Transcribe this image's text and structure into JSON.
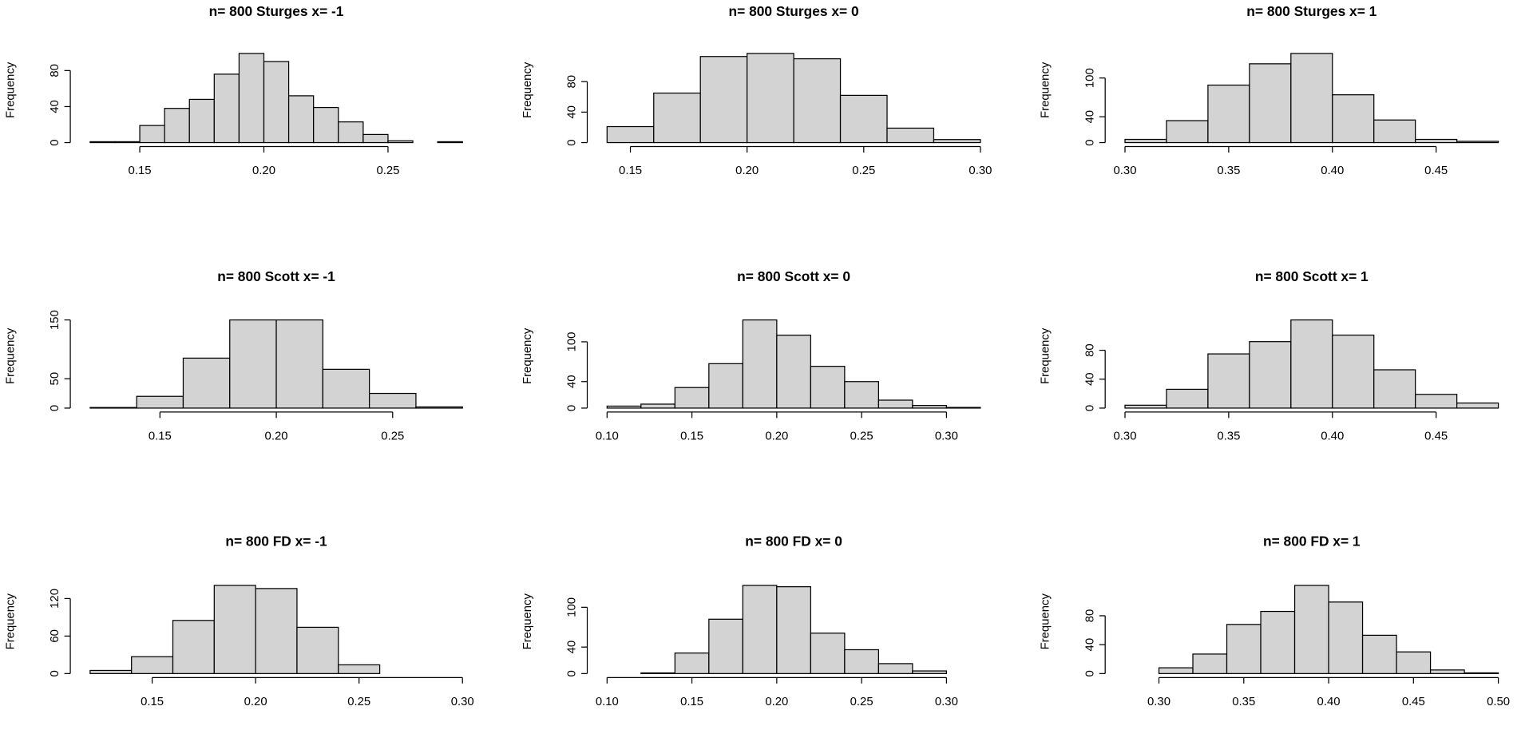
{
  "chart_data": [
    {
      "type": "histogram",
      "title": "n= 800 Sturges x= -1",
      "y_label": "Frequency",
      "bins": [
        0.13,
        0.14,
        0.15,
        0.16,
        0.17,
        0.18,
        0.19,
        0.2,
        0.21,
        0.22,
        0.23,
        0.24,
        0.25,
        0.26,
        0.27,
        0.28
      ],
      "values": [
        1,
        1,
        19,
        38,
        48,
        76,
        99,
        90,
        52,
        39,
        23,
        9,
        2,
        0,
        1
      ],
      "xlim": [
        0.13,
        0.28
      ],
      "xticks": [
        {
          "value": 0.15,
          "label": "0.15"
        },
        {
          "value": 0.2,
          "label": "0.20"
        },
        {
          "value": 0.25,
          "label": "0.25"
        }
      ],
      "ylim": [
        0,
        99
      ],
      "yticks": [
        0,
        40,
        80
      ],
      "color": "#d3d3d3"
    },
    {
      "type": "histogram",
      "title": "n= 800 Sturges x= 0",
      "y_label": "Frequency",
      "bins": [
        0.14,
        0.16,
        0.18,
        0.2,
        0.22,
        0.24,
        0.26,
        0.28,
        0.3
      ],
      "values": [
        21,
        65,
        113,
        117,
        110,
        62,
        19,
        4
      ],
      "xlim": [
        0.14,
        0.3
      ],
      "xticks": [
        {
          "value": 0.15,
          "label": "0.15"
        },
        {
          "value": 0.2,
          "label": "0.20"
        },
        {
          "value": 0.25,
          "label": "0.25"
        },
        {
          "value": 0.3,
          "label": "0.30"
        }
      ],
      "ylim": [
        0,
        117
      ],
      "yticks": [
        0,
        40,
        80
      ],
      "color": "#d3d3d3"
    },
    {
      "type": "histogram",
      "title": "n= 800 Sturges x= 1",
      "y_label": "Frequency",
      "bins": [
        0.3,
        0.32,
        0.34,
        0.36,
        0.38,
        0.4,
        0.42,
        0.44,
        0.46,
        0.48
      ],
      "values": [
        5,
        34,
        89,
        122,
        138,
        74,
        35,
        5,
        2
      ],
      "xlim": [
        0.3,
        0.48
      ],
      "xticks": [
        {
          "value": 0.3,
          "label": "0.30"
        },
        {
          "value": 0.35,
          "label": "0.35"
        },
        {
          "value": 0.4,
          "label": "0.40"
        },
        {
          "value": 0.45,
          "label": "0.45"
        }
      ],
      "ylim": [
        0,
        138
      ],
      "yticks": [
        0,
        40,
        100
      ],
      "color": "#d3d3d3"
    },
    {
      "type": "histogram",
      "title": "n= 800 Scott x= -1",
      "y_label": "Frequency",
      "bins": [
        0.12,
        0.14,
        0.16,
        0.18,
        0.2,
        0.22,
        0.24,
        0.26,
        0.28
      ],
      "values": [
        1,
        20,
        85,
        150,
        150,
        66,
        25,
        2
      ],
      "xlim": [
        0.12,
        0.28
      ],
      "xticks": [
        {
          "value": 0.15,
          "label": "0.15"
        },
        {
          "value": 0.2,
          "label": "0.20"
        },
        {
          "value": 0.25,
          "label": "0.25"
        }
      ],
      "ylim": [
        0,
        150
      ],
      "yticks": [
        0,
        50,
        150
      ],
      "color": "#d3d3d3"
    },
    {
      "type": "histogram",
      "title": "n= 800 Scott x= 0",
      "y_label": "Frequency",
      "bins": [
        0.1,
        0.12,
        0.14,
        0.16,
        0.18,
        0.2,
        0.22,
        0.24,
        0.26,
        0.28,
        0.3,
        0.32
      ],
      "values": [
        3,
        6,
        31,
        67,
        133,
        110,
        63,
        40,
        12,
        4,
        1
      ],
      "xlim": [
        0.1,
        0.32
      ],
      "xticks": [
        {
          "value": 0.1,
          "label": "0.10"
        },
        {
          "value": 0.15,
          "label": "0.15"
        },
        {
          "value": 0.2,
          "label": "0.20"
        },
        {
          "value": 0.25,
          "label": "0.25"
        },
        {
          "value": 0.3,
          "label": "0.30"
        }
      ],
      "ylim": [
        0,
        133
      ],
      "yticks": [
        0,
        40,
        100
      ],
      "color": "#d3d3d3"
    },
    {
      "type": "histogram",
      "title": "n= 800 Scott x= 1",
      "y_label": "Frequency",
      "bins": [
        0.3,
        0.32,
        0.34,
        0.36,
        0.38,
        0.4,
        0.42,
        0.44,
        0.46,
        0.48
      ],
      "values": [
        4,
        26,
        75,
        92,
        122,
        101,
        53,
        19,
        7
      ],
      "xlim": [
        0.3,
        0.48
      ],
      "xticks": [
        {
          "value": 0.3,
          "label": "0.30"
        },
        {
          "value": 0.35,
          "label": "0.35"
        },
        {
          "value": 0.4,
          "label": "0.40"
        },
        {
          "value": 0.45,
          "label": "0.45"
        }
      ],
      "ylim": [
        0,
        122
      ],
      "yticks": [
        0,
        40,
        80
      ],
      "color": "#d3d3d3"
    },
    {
      "type": "histogram",
      "title": "n= 800 FD x= -1",
      "y_label": "Frequency",
      "bins": [
        0.12,
        0.14,
        0.16,
        0.18,
        0.2,
        0.22,
        0.24,
        0.26,
        0.28,
        0.3
      ],
      "values": [
        5,
        27,
        85,
        141,
        136,
        74,
        14,
        0,
        0
      ],
      "xlim": [
        0.12,
        0.3
      ],
      "xticks": [
        {
          "value": 0.15,
          "label": "0.15"
        },
        {
          "value": 0.2,
          "label": "0.20"
        },
        {
          "value": 0.25,
          "label": "0.25"
        },
        {
          "value": 0.3,
          "label": "0.30"
        }
      ],
      "ylim": [
        0,
        141
      ],
      "yticks": [
        0,
        60,
        120
      ],
      "color": "#d3d3d3"
    },
    {
      "type": "histogram",
      "title": "n= 800 FD x= 0",
      "y_label": "Frequency",
      "bins": [
        0.1,
        0.12,
        0.14,
        0.16,
        0.18,
        0.2,
        0.22,
        0.24,
        0.26,
        0.28,
        0.3
      ],
      "values": [
        0,
        1,
        31,
        82,
        133,
        131,
        61,
        36,
        15,
        4
      ],
      "xlim": [
        0.1,
        0.32
      ],
      "xticks": [
        {
          "value": 0.1,
          "label": "0.10"
        },
        {
          "value": 0.15,
          "label": "0.15"
        },
        {
          "value": 0.2,
          "label": "0.20"
        },
        {
          "value": 0.25,
          "label": "0.25"
        },
        {
          "value": 0.3,
          "label": "0.30"
        }
      ],
      "ylim": [
        0,
        133
      ],
      "yticks": [
        0,
        40,
        100
      ],
      "color": "#d3d3d3"
    },
    {
      "type": "histogram",
      "title": "n= 800 FD x= 1",
      "y_label": "Frequency",
      "bins": [
        0.28,
        0.3,
        0.32,
        0.34,
        0.36,
        0.38,
        0.4,
        0.42,
        0.44,
        0.46,
        0.48,
        0.5
      ],
      "values": [
        0,
        8,
        27,
        68,
        86,
        122,
        99,
        53,
        30,
        5,
        1
      ],
      "xlim": [
        0.28,
        0.5
      ],
      "xticks": [
        {
          "value": 0.3,
          "label": "0.30"
        },
        {
          "value": 0.35,
          "label": "0.35"
        },
        {
          "value": 0.4,
          "label": "0.40"
        },
        {
          "value": 0.45,
          "label": "0.45"
        },
        {
          "value": 0.5,
          "label": "0.50"
        }
      ],
      "ylim": [
        0,
        122
      ],
      "yticks": [
        0,
        40,
        80
      ],
      "color": "#d3d3d3"
    }
  ]
}
